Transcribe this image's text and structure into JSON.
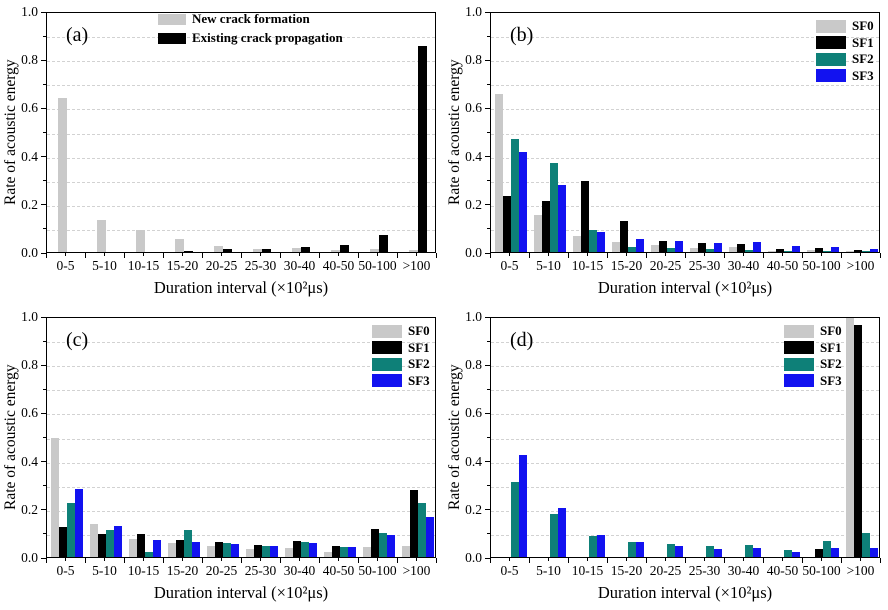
{
  "chart_data": [
    {
      "type": "bar",
      "panel_label": "(a)",
      "xlabel": "Duration interval (×10²μs)",
      "ylabel": "Rate of acoustic energy",
      "categories": [
        "0-5",
        "5-10",
        "10-15",
        "15-20",
        "20-25",
        "25-30",
        "30-40",
        "40-50",
        "50-100",
        ">100"
      ],
      "series": [
        {
          "name": "New crack formation",
          "color": "#c9c9c9",
          "values": [
            0.645,
            0.135,
            0.092,
            0.055,
            0.026,
            0.013,
            0.016,
            0.008,
            0.013,
            0.01
          ]
        },
        {
          "name": "Existing crack propagation",
          "color": "#000000",
          "values": [
            0,
            0,
            0,
            0.005,
            0.011,
            0.013,
            0.022,
            0.031,
            0.07,
            0.86
          ]
        }
      ],
      "ylim": [
        0,
        1.0
      ],
      "yticks": [
        "0.0",
        "0.2",
        "0.4",
        "0.6",
        "0.8",
        "1.0"
      ],
      "grid": "horizontal dashed every 0.1",
      "legend_position": "top-center"
    },
    {
      "type": "bar",
      "panel_label": "(b)",
      "xlabel": "Duration interval (×10²μs)",
      "ylabel": "Rate of acoustic energy",
      "categories": [
        "0-5",
        "5-10",
        "10-15",
        "15-20",
        "20-25",
        "25-30",
        "30-40",
        "40-50",
        "50-100",
        ">100"
      ],
      "series": [
        {
          "name": "SF0",
          "color": "#c9c9c9",
          "values": [
            0.66,
            0.155,
            0.066,
            0.043,
            0.03,
            0.015,
            0.021,
            0.005,
            0.008,
            0.003
          ]
        },
        {
          "name": "SF1",
          "color": "#000000",
          "values": [
            0.235,
            0.213,
            0.295,
            0.128,
            0.045,
            0.036,
            0.032,
            0.013,
            0.017,
            0.009
          ]
        },
        {
          "name": "SF2",
          "color": "#0e8078",
          "values": [
            0.472,
            0.373,
            0.092,
            0.023,
            0.018,
            0.011,
            0.008,
            0.006,
            0.005,
            0.003
          ]
        },
        {
          "name": "SF3",
          "color": "#1212f0",
          "values": [
            0.417,
            0.278,
            0.085,
            0.054,
            0.045,
            0.037,
            0.043,
            0.027,
            0.02,
            0.014
          ]
        }
      ],
      "ylim": [
        0,
        1.0
      ],
      "yticks": [
        "0.0",
        "0.2",
        "0.4",
        "0.6",
        "0.8",
        "1.0"
      ],
      "grid": "horizontal dashed every 0.1",
      "legend_position": "top-right"
    },
    {
      "type": "bar",
      "panel_label": "(c)",
      "xlabel": "Duration interval (×10²μs)",
      "ylabel": "Rate of acoustic energy",
      "categories": [
        "0-5",
        "5-10",
        "10-15",
        "15-20",
        "20-25",
        "25-30",
        "30-40",
        "40-50",
        "50-100",
        ">100"
      ],
      "series": [
        {
          "name": "SF0",
          "color": "#c9c9c9",
          "values": [
            0.495,
            0.138,
            0.076,
            0.06,
            0.048,
            0.033,
            0.039,
            0.023,
            0.042,
            0.048
          ]
        },
        {
          "name": "SF1",
          "color": "#000000",
          "values": [
            0.124,
            0.097,
            0.097,
            0.071,
            0.061,
            0.05,
            0.066,
            0.045,
            0.115,
            0.279
          ]
        },
        {
          "name": "SF2",
          "color": "#0e8078",
          "values": [
            0.224,
            0.113,
            0.021,
            0.113,
            0.059,
            0.046,
            0.061,
            0.042,
            0.1,
            0.226
          ]
        },
        {
          "name": "SF3",
          "color": "#1212f0",
          "values": [
            0.284,
            0.131,
            0.073,
            0.061,
            0.053,
            0.045,
            0.06,
            0.041,
            0.092,
            0.166
          ]
        }
      ],
      "ylim": [
        0,
        1.0
      ],
      "yticks": [
        "0.0",
        "0.2",
        "0.4",
        "0.6",
        "0.8",
        "1.0"
      ],
      "grid": "horizontal dashed every 0.1",
      "legend_position": "top-right"
    },
    {
      "type": "bar",
      "panel_label": "(d)",
      "xlabel": "Duration interval (×10²μs)",
      "ylabel": "Rate of acoustic energy",
      "categories": [
        "0-5",
        "5-10",
        "10-15",
        "15-20",
        "20-25",
        "25-30",
        "30-40",
        "40-50",
        "50-100",
        ">100"
      ],
      "series": [
        {
          "name": "SF0",
          "color": "#c9c9c9",
          "values": [
            0,
            0,
            0,
            0,
            0,
            0,
            0,
            0,
            0,
            1.0
          ]
        },
        {
          "name": "SF1",
          "color": "#000000",
          "values": [
            0,
            0,
            0,
            0,
            0,
            0,
            0,
            0,
            0.033,
            0.97
          ]
        },
        {
          "name": "SF2",
          "color": "#0e8078",
          "values": [
            0.315,
            0.18,
            0.087,
            0.062,
            0.056,
            0.045,
            0.052,
            0.029,
            0.066,
            0.1
          ]
        },
        {
          "name": "SF3",
          "color": "#1212f0",
          "values": [
            0.425,
            0.203,
            0.094,
            0.062,
            0.045,
            0.034,
            0.037,
            0.021,
            0.039,
            0.038
          ]
        }
      ],
      "ylim": [
        0,
        1.0
      ],
      "yticks": [
        "0.0",
        "0.2",
        "0.4",
        "0.6",
        "0.8",
        "1.0"
      ],
      "grid": "horizontal dashed every 0.1",
      "legend_position": "top-right-shifted"
    }
  ]
}
